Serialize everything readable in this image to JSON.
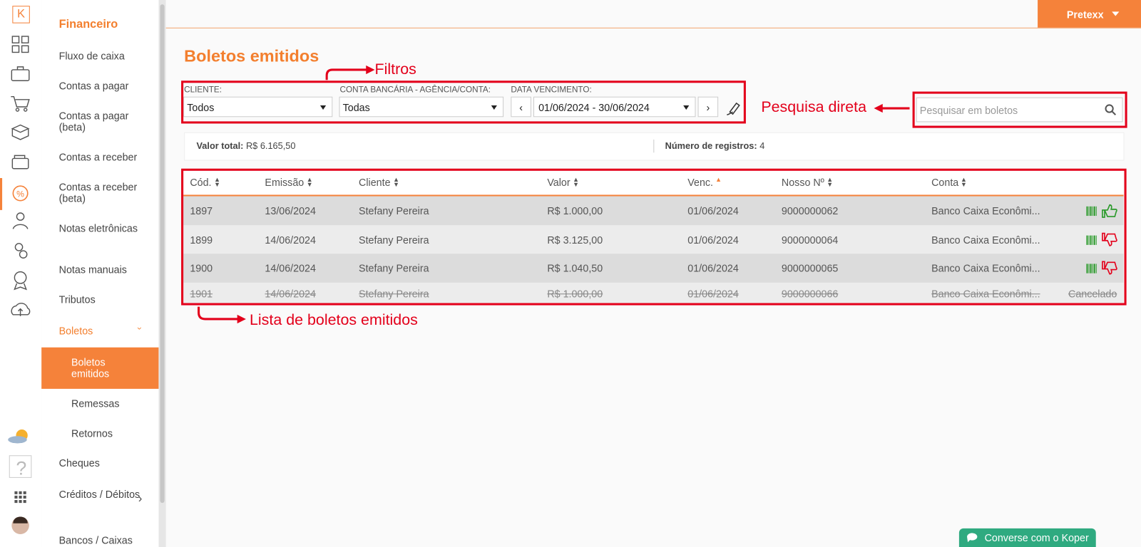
{
  "logo": "K",
  "header": {
    "user": "Pretexx"
  },
  "menu": {
    "title": "Financeiro",
    "items": [
      {
        "label": "Fluxo de caixa"
      },
      {
        "label": "Contas a pagar"
      },
      {
        "label": "Contas a pagar (beta)"
      },
      {
        "label": "Contas a receber"
      },
      {
        "label": "Contas a receber (beta)"
      },
      {
        "label": "Notas eletrônicas"
      },
      {
        "label": "Notas manuais"
      },
      {
        "label": "Tributos"
      },
      {
        "label": "Boletos",
        "children": [
          {
            "label": "Boletos emitidos"
          },
          {
            "label": "Remessas"
          },
          {
            "label": "Retornos"
          }
        ]
      },
      {
        "label": "Cheques"
      },
      {
        "label": "Créditos / Débitos"
      },
      {
        "label": "Bancos / Caixas"
      }
    ]
  },
  "page": {
    "title": "Boletos emitidos"
  },
  "filters": {
    "client": {
      "label": "CLIENTE:",
      "value": "Todos"
    },
    "account": {
      "label": "CONTA BANCÁRIA - AGÊNCIA/CONTA:",
      "value": "Todas"
    },
    "due_date": {
      "label": "DATA VENCIMENTO:",
      "value": "01/06/2024 - 30/06/2024"
    }
  },
  "search": {
    "placeholder": "Pesquisar em boletos"
  },
  "summary": {
    "total_label": "Valor total:",
    "total_value": "R$ 6.165,50",
    "count_label": "Número de registros:",
    "count_value": "4"
  },
  "table": {
    "columns": [
      "Cód.",
      "Emissão",
      "Cliente",
      "Valor",
      "Venc.",
      "Nosso Nº",
      "Conta"
    ],
    "rows": [
      [
        "1897",
        "13/06/2024",
        "Stefany Pereira",
        "R$ 1.000,00",
        "01/06/2024",
        "9000000062",
        "Banco Caixa Econômi..."
      ],
      [
        "1899",
        "14/06/2024",
        "Stefany Pereira",
        "R$ 3.125,00",
        "01/06/2024",
        "9000000064",
        "Banco Caixa Econômi..."
      ],
      [
        "1900",
        "14/06/2024",
        "Stefany Pereira",
        "R$ 1.040,50",
        "01/06/2024",
        "9000000065",
        "Banco Caixa Econômi..."
      ],
      [
        "1901",
        "14/06/2024",
        "Stefany Pereira",
        "R$ 1.000,00",
        "01/06/2024",
        "9000000066",
        "Banco Caixa Econômi..."
      ]
    ],
    "status": [
      null,
      null,
      null,
      "Cancelado"
    ]
  },
  "annotations": {
    "filters": "Filtros",
    "search": "Pesquisa direta",
    "list": "Lista de boletos emitidos"
  },
  "chat": {
    "label": "Converse com o Koper"
  }
}
